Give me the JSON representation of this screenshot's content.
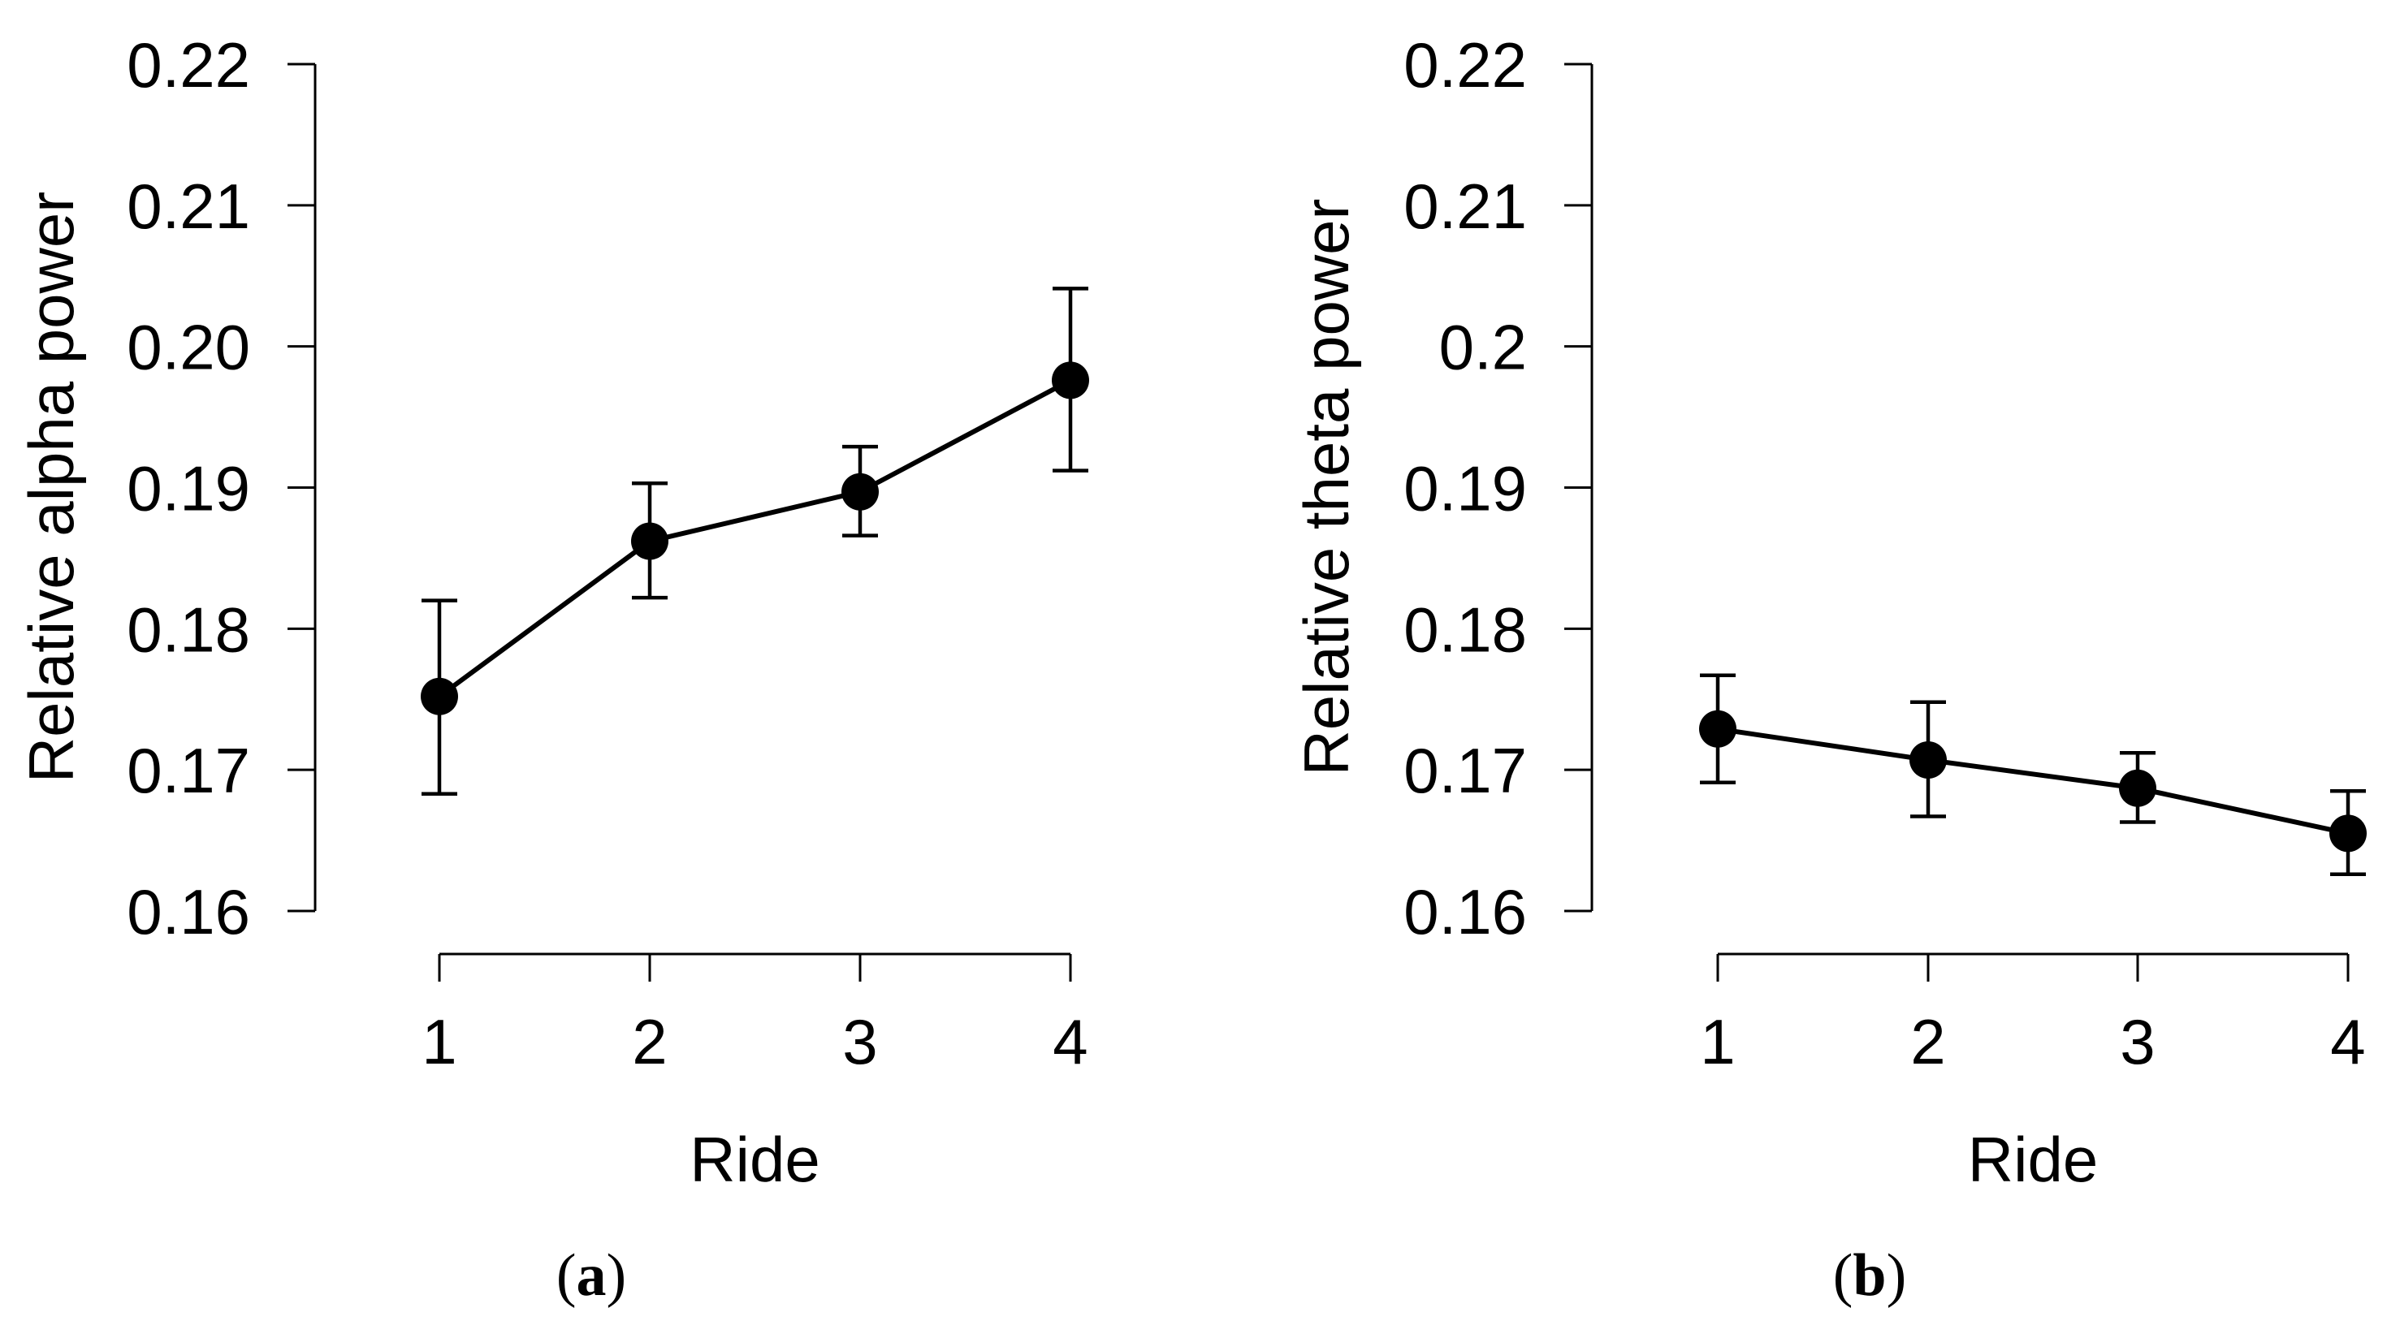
{
  "chart_data": [
    {
      "type": "line",
      "panel": "a",
      "xlabel": "Ride",
      "ylabel": "Relative alpha power",
      "categories": [
        "1",
        "2",
        "3",
        "4"
      ],
      "x": [
        1,
        2,
        3,
        4
      ],
      "xticks": [
        "1",
        "2",
        "3",
        "4"
      ],
      "yticks": [
        "0.16",
        "0.17",
        "0.18",
        "0.19",
        "0.20",
        "0.21",
        "0.22"
      ],
      "ylim": [
        0.16,
        0.22
      ],
      "series": [
        {
          "name": "Relative alpha power",
          "values": [
            0.1752,
            0.1862,
            0.1897,
            0.1976
          ],
          "err_low": [
            0.1683,
            0.1822,
            0.1866,
            0.1912
          ],
          "err_high": [
            0.182,
            0.1903,
            0.1929,
            0.2041
          ]
        }
      ],
      "grid": false
    },
    {
      "type": "line",
      "panel": "b",
      "xlabel": "Ride",
      "ylabel": "Relative theta power",
      "categories": [
        "1",
        "2",
        "3",
        "4"
      ],
      "x": [
        1,
        2,
        3,
        4
      ],
      "xticks": [
        "1",
        "2",
        "3",
        "4"
      ],
      "yticks": [
        "0.16",
        "0.17",
        "0.18",
        "0.19",
        "0.2",
        "0.21",
        "0.22"
      ],
      "ylim": [
        0.16,
        0.22
      ],
      "series": [
        {
          "name": "Relative theta power",
          "values": [
            0.1729,
            0.1707,
            0.1687,
            0.1655
          ],
          "err_low": [
            0.1691,
            0.1667,
            0.1663,
            0.1626
          ],
          "err_high": [
            0.1767,
            0.1748,
            0.1712,
            0.1685
          ]
        }
      ],
      "grid": false
    }
  ],
  "panels": [
    {
      "open": "(",
      "letter": "a",
      "close": ")"
    },
    {
      "open": "(",
      "letter": "b",
      "close": ")"
    }
  ],
  "colors": {
    "ink": "#000000",
    "background": "#ffffff"
  }
}
